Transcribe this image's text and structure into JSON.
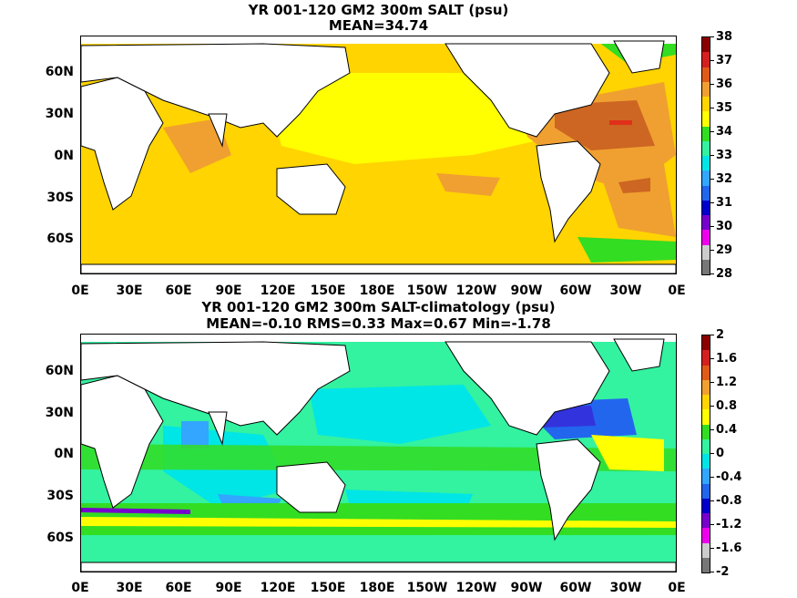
{
  "panels": [
    {
      "title_line1": "YR 001-120 GM2 300m SALT (psu)",
      "title_line2": "MEAN=34.74",
      "colorbar": {
        "labels": [
          "38",
          "37",
          "36",
          "35",
          "34",
          "33",
          "32",
          "31",
          "30",
          "29",
          "28"
        ],
        "colors": [
          "#8b0000",
          "#d62020",
          "#e05a18",
          "#f0a030",
          "#ffd400",
          "#ffff00",
          "#33dd22",
          "#33f2a0",
          "#00e6e6",
          "#33a6ff",
          "#2266ee",
          "#0000cc",
          "#7700cc",
          "#ee00ee",
          "#cccccc",
          "#777777"
        ]
      },
      "regions": [
        {
          "name": "north-atlantic-high",
          "value": "36.5",
          "color": "#cc6622"
        },
        {
          "name": "subtropical-atlantic",
          "value": "35.5",
          "color": "#f0a030"
        },
        {
          "name": "north-pacific",
          "value": "34.5",
          "color": "#ffff00"
        },
        {
          "name": "southern-ocean",
          "value": "34.2",
          "color": "#ffd400"
        },
        {
          "name": "arctic-fresh",
          "value": "33.5",
          "color": "#33dd22"
        }
      ]
    },
    {
      "title_line1": "YR 001-120 GM2 300m SALT-climatology (psu)",
      "title_line2": "MEAN=-0.10   RMS=0.33   Max=0.67   Min=-1.78",
      "colorbar": {
        "labels": [
          "2",
          "1.6",
          "1.2",
          "0.8",
          "0.4",
          "0",
          "-0.4",
          "-0.8",
          "-1.2",
          "-1.6",
          "-2"
        ],
        "colors": [
          "#8b0000",
          "#d62020",
          "#e05a18",
          "#f0a030",
          "#ffd400",
          "#ffff00",
          "#33dd22",
          "#33f2a0",
          "#00e6e6",
          "#33a6ff",
          "#2266ee",
          "#0000cc",
          "#7700cc",
          "#ee00ee",
          "#cccccc",
          "#777777"
        ]
      },
      "regions": [
        {
          "name": "gulf-stream-negative",
          "value": "-1.2",
          "color": "#3333dd"
        },
        {
          "name": "southern-ocean-band",
          "value": "0.6",
          "color": "#ffff00"
        },
        {
          "name": "pacific-tropics",
          "value": "-0.2",
          "color": "#33f2a0"
        },
        {
          "name": "indian-ocean",
          "value": "-0.5",
          "color": "#00e6e6"
        }
      ]
    }
  ],
  "lat_labels": [
    "60N",
    "30N",
    "0N",
    "30S",
    "60S"
  ],
  "lon_labels": [
    "0E",
    "30E",
    "60E",
    "90E",
    "120E",
    "150E",
    "180E",
    "150W",
    "120W",
    "90W",
    "60W",
    "30W",
    "0E"
  ],
  "colors": {
    "land": "#ffffff",
    "coast": "#000000",
    "ocean_base_top": "#ffd400",
    "ocean_base_bottom": "#33f2a0"
  }
}
